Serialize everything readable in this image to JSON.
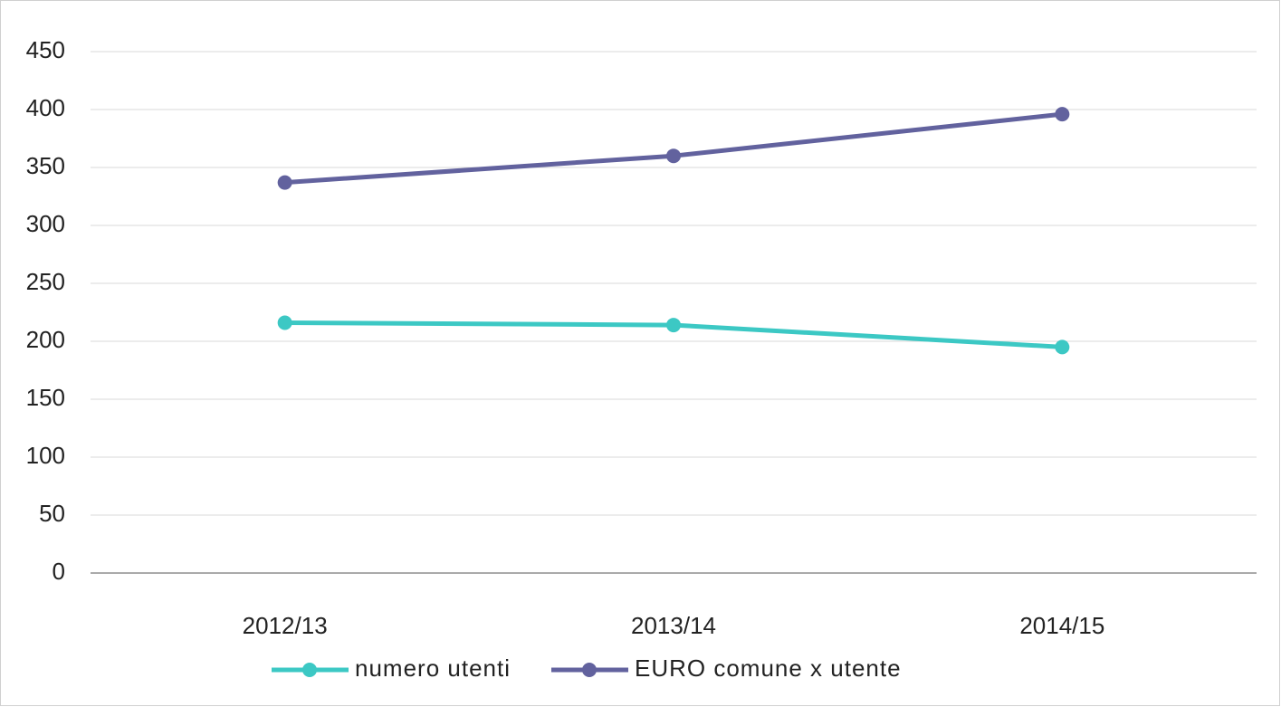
{
  "chart_data": {
    "type": "line",
    "categories": [
      "2012/13",
      "2013/14",
      "2014/15"
    ],
    "series": [
      {
        "name": "numero utenti",
        "color": "#3cc8c4",
        "values": [
          216,
          214,
          195
        ]
      },
      {
        "name": "EURO comune x utente",
        "color": "#62629e",
        "values": [
          337,
          360,
          396
        ]
      }
    ],
    "ylim": [
      0,
      450
    ],
    "yticks": [
      0,
      50,
      100,
      150,
      200,
      250,
      300,
      350,
      400,
      450
    ],
    "grid": true,
    "legend": "bottom"
  }
}
